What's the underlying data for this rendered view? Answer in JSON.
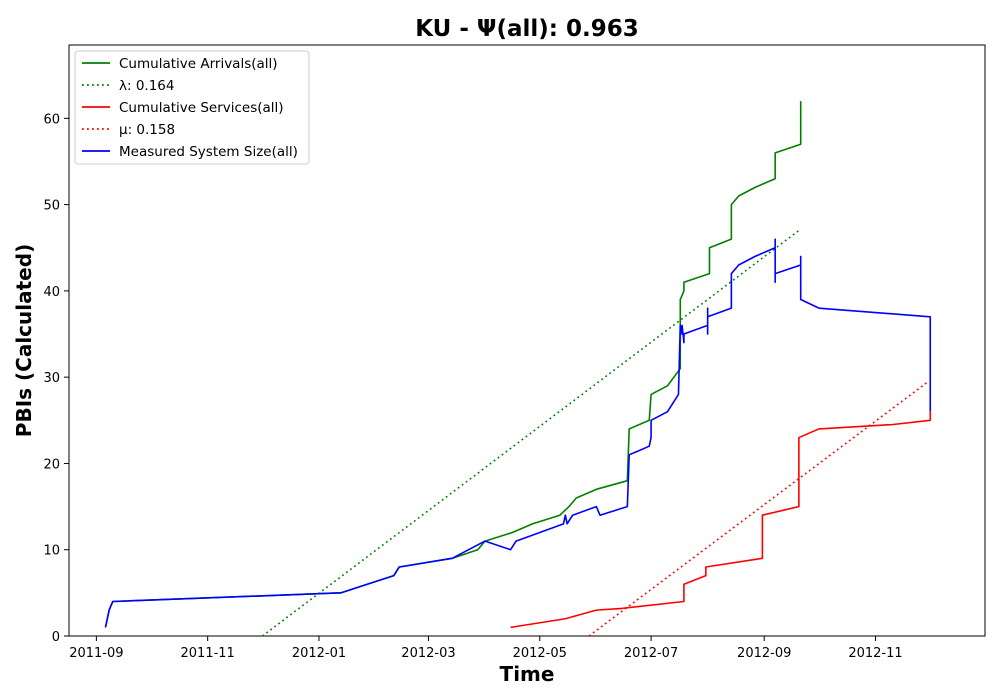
{
  "chart_data": {
    "type": "line",
    "title": "KU -  Ψ(all): 0.963",
    "xlabel": "Time",
    "ylabel": "PBIs (Calculated)",
    "xlim": [
      "2011-08-17",
      "2012-12-31"
    ],
    "ylim": [
      0,
      68.5
    ],
    "x_ticks": [
      "2011-09",
      "2011-11",
      "2012-01",
      "2012-03",
      "2012-05",
      "2012-07",
      "2012-09",
      "2012-11"
    ],
    "y_ticks": [
      0,
      10,
      20,
      30,
      40,
      50,
      60
    ],
    "grid": false,
    "legend_position": "upper-left",
    "colors": {
      "green": "#008000",
      "red": "#ff0000",
      "blue": "#0000ff"
    },
    "series": [
      {
        "name": "Cumulative Arrivals(all)",
        "color": "green",
        "style": "solid",
        "points": [
          [
            "2011-09-06",
            1
          ],
          [
            "2011-09-08",
            3
          ],
          [
            "2011-09-10",
            4
          ],
          [
            "2012-01-13",
            5
          ],
          [
            "2012-02-11",
            7
          ],
          [
            "2012-02-14",
            8
          ],
          [
            "2012-03-14",
            9
          ],
          [
            "2012-03-28",
            10
          ],
          [
            "2012-04-01",
            11
          ],
          [
            "2012-04-16",
            12
          ],
          [
            "2012-04-27",
            13
          ],
          [
            "2012-05-12",
            14
          ],
          [
            "2012-05-17",
            15
          ],
          [
            "2012-05-21",
            16
          ],
          [
            "2012-06-01",
            17
          ],
          [
            "2012-06-18",
            18
          ],
          [
            "2012-06-19",
            24
          ],
          [
            "2012-06-30",
            25
          ],
          [
            "2012-07-01",
            28
          ],
          [
            "2012-07-10",
            29
          ],
          [
            "2012-07-17",
            31
          ],
          [
            "2012-07-17",
            39
          ],
          [
            "2012-07-19",
            40
          ],
          [
            "2012-07-19",
            41
          ],
          [
            "2012-08-02",
            42
          ],
          [
            "2012-08-02",
            45
          ],
          [
            "2012-08-14",
            46
          ],
          [
            "2012-08-14",
            50
          ],
          [
            "2012-08-18",
            51
          ],
          [
            "2012-08-27",
            52
          ],
          [
            "2012-09-07",
            53
          ],
          [
            "2012-09-07",
            56
          ],
          [
            "2012-09-21",
            57
          ],
          [
            "2012-09-21",
            62
          ]
        ]
      },
      {
        "name": "λ: 0.164",
        "color": "green",
        "style": "dotted",
        "points": [
          [
            "2011-12-01",
            0
          ],
          [
            "2012-09-20",
            47
          ]
        ]
      },
      {
        "name": "Cumulative Services(all)",
        "color": "red",
        "style": "solid",
        "points": [
          [
            "2012-04-15",
            1
          ],
          [
            "2012-05-15",
            2
          ],
          [
            "2012-06-01",
            3
          ],
          [
            "2012-06-15",
            3.2
          ],
          [
            "2012-07-19",
            4
          ],
          [
            "2012-07-19",
            6
          ],
          [
            "2012-07-31",
            7
          ],
          [
            "2012-07-31",
            8
          ],
          [
            "2012-08-31",
            9
          ],
          [
            "2012-08-31",
            14
          ],
          [
            "2012-09-20",
            15
          ],
          [
            "2012-09-20",
            23
          ],
          [
            "2012-10-01",
            24
          ],
          [
            "2012-11-10",
            24.5
          ],
          [
            "2012-12-01",
            25
          ],
          [
            "2012-12-01",
            26
          ]
        ]
      },
      {
        "name": "μ: 0.158",
        "color": "red",
        "style": "dotted",
        "points": [
          [
            "2012-05-28",
            0
          ],
          [
            "2012-11-30",
            29.5
          ]
        ]
      },
      {
        "name": "Measured System Size(all)",
        "color": "blue",
        "style": "solid",
        "points": [
          [
            "2011-09-06",
            1
          ],
          [
            "2011-09-08",
            3
          ],
          [
            "2011-09-10",
            4
          ],
          [
            "2012-01-13",
            5
          ],
          [
            "2012-02-11",
            7
          ],
          [
            "2012-02-14",
            8
          ],
          [
            "2012-03-14",
            9
          ],
          [
            "2012-04-01",
            11
          ],
          [
            "2012-04-15",
            10
          ],
          [
            "2012-04-18",
            11
          ],
          [
            "2012-05-01",
            12
          ],
          [
            "2012-05-14",
            13
          ],
          [
            "2012-05-15",
            14
          ],
          [
            "2012-05-16",
            13
          ],
          [
            "2012-05-19",
            14
          ],
          [
            "2012-06-01",
            15
          ],
          [
            "2012-06-03",
            14
          ],
          [
            "2012-06-18",
            15
          ],
          [
            "2012-06-19",
            21
          ],
          [
            "2012-06-30",
            22
          ],
          [
            "2012-07-01",
            23
          ],
          [
            "2012-07-01",
            25
          ],
          [
            "2012-07-10",
            26
          ],
          [
            "2012-07-16",
            28
          ],
          [
            "2012-07-17",
            36
          ],
          [
            "2012-07-18",
            35
          ],
          [
            "2012-07-18",
            36
          ],
          [
            "2012-07-19",
            34
          ],
          [
            "2012-07-19",
            35
          ],
          [
            "2012-08-01",
            36
          ],
          [
            "2012-08-01",
            35
          ],
          [
            "2012-08-01",
            38
          ],
          [
            "2012-08-01",
            37
          ],
          [
            "2012-08-14",
            38
          ],
          [
            "2012-08-14",
            42
          ],
          [
            "2012-08-18",
            43
          ],
          [
            "2012-08-27",
            44
          ],
          [
            "2012-09-07",
            45
          ],
          [
            "2012-09-07",
            46
          ],
          [
            "2012-09-07",
            41
          ],
          [
            "2012-09-07",
            42
          ],
          [
            "2012-09-21",
            43
          ],
          [
            "2012-09-21",
            40
          ],
          [
            "2012-09-21",
            44
          ],
          [
            "2012-09-21",
            39
          ],
          [
            "2012-10-01",
            38
          ],
          [
            "2012-12-01",
            37
          ],
          [
            "2012-12-01",
            26
          ]
        ]
      }
    ]
  }
}
